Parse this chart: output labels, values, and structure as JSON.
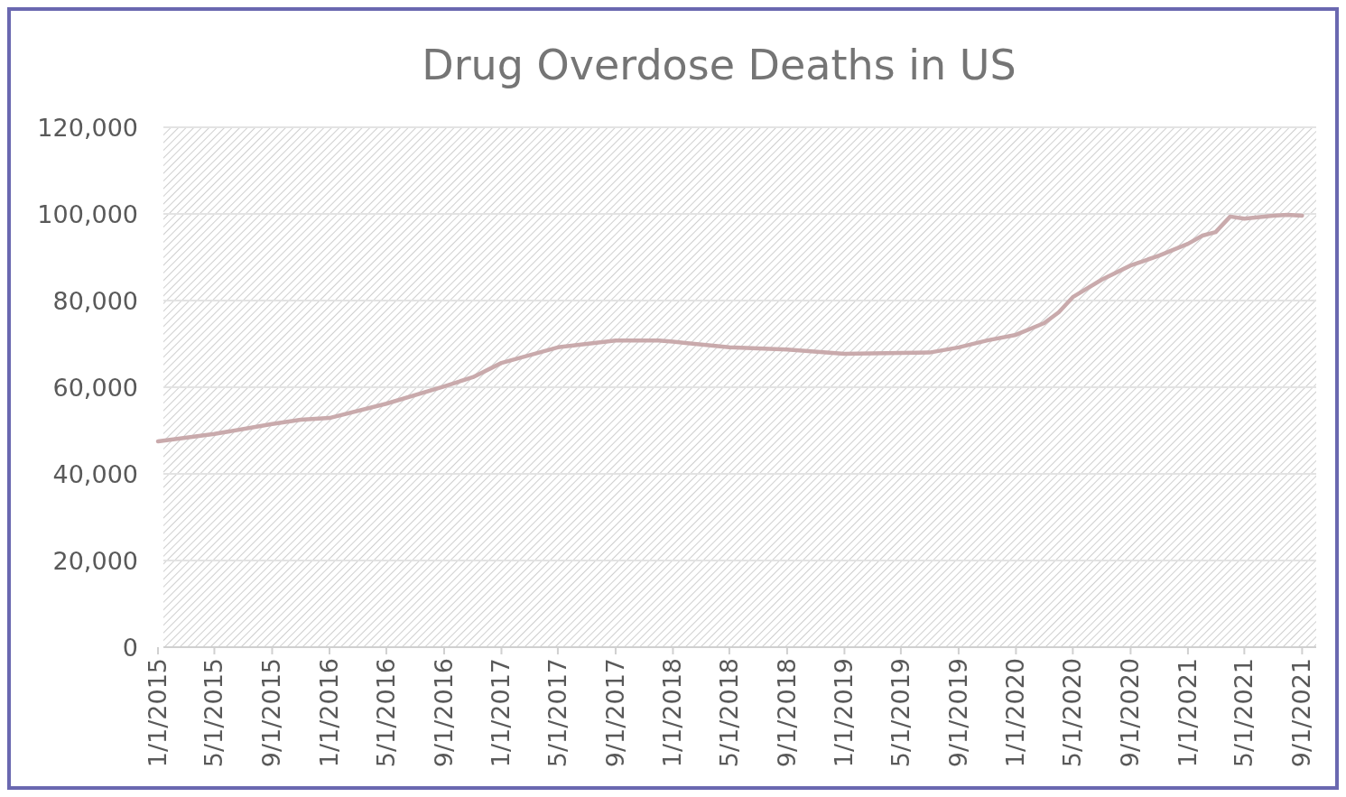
{
  "chart_data": {
    "type": "line",
    "title": "Drug Overdose Deaths in US",
    "x": [
      "2015-01-01",
      "2015-05-01",
      "2015-09-01",
      "2015-11-01",
      "2016-01-01",
      "2016-05-01",
      "2016-09-01",
      "2016-11-01",
      "2017-01-01",
      "2017-05-01",
      "2017-09-01",
      "2017-12-01",
      "2018-01-01",
      "2018-05-01",
      "2018-09-01",
      "2019-01-01",
      "2019-05-01",
      "2019-07-01",
      "2019-09-01",
      "2019-11-01",
      "2020-01-01",
      "2020-03-01",
      "2020-04-01",
      "2020-05-01",
      "2020-07-01",
      "2020-09-01",
      "2020-11-01",
      "2021-01-01",
      "2021-02-01",
      "2021-03-01",
      "2021-04-01",
      "2021-05-01",
      "2021-07-01",
      "2021-08-01",
      "2021-09-01"
    ],
    "series": [
      {
        "color": "#c9aaac",
        "values": [
          47500,
          49200,
          51500,
          52500,
          52900,
          56200,
          60200,
          62300,
          65600,
          69200,
          70800,
          70800,
          70500,
          69200,
          68700,
          67700,
          67900,
          68000,
          69200,
          70800,
          72100,
          74800,
          77300,
          80800,
          84800,
          88100,
          90400,
          93100,
          95000,
          95800,
          99400,
          98900,
          99600,
          99800,
          99600
        ]
      }
    ],
    "xlim": [
      "2015-01-01",
      "2021-10-01"
    ],
    "xticks": [
      {
        "value": "2015-01-01",
        "label": "1/1/2015"
      },
      {
        "value": "2015-05-01",
        "label": "5/1/2015"
      },
      {
        "value": "2015-09-01",
        "label": "9/1/2015"
      },
      {
        "value": "2016-01-01",
        "label": "1/1/2016"
      },
      {
        "value": "2016-05-01",
        "label": "5/1/2016"
      },
      {
        "value": "2016-09-01",
        "label": "9/1/2016"
      },
      {
        "value": "2017-01-01",
        "label": "1/1/2017"
      },
      {
        "value": "2017-05-01",
        "label": "5/1/2017"
      },
      {
        "value": "2017-09-01",
        "label": "9/1/2017"
      },
      {
        "value": "2018-01-01",
        "label": "1/1/2018"
      },
      {
        "value": "2018-05-01",
        "label": "5/1/2018"
      },
      {
        "value": "2018-09-01",
        "label": "9/1/2018"
      },
      {
        "value": "2019-01-01",
        "label": "1/1/2019"
      },
      {
        "value": "2019-05-01",
        "label": "5/1/2019"
      },
      {
        "value": "2019-09-01",
        "label": "9/1/2019"
      },
      {
        "value": "2020-01-01",
        "label": "1/1/2020"
      },
      {
        "value": "2020-05-01",
        "label": "5/1/2020"
      },
      {
        "value": "2020-09-01",
        "label": "9/1/2020"
      },
      {
        "value": "2021-01-01",
        "label": "1/1/2021"
      },
      {
        "value": "2021-05-01",
        "label": "5/1/2021"
      },
      {
        "value": "2021-09-01",
        "label": "9/1/2021"
      }
    ],
    "ylim": [
      0,
      120000
    ],
    "yticks": [
      {
        "value": 0,
        "label": "0"
      },
      {
        "value": 20000,
        "label": "20,000"
      },
      {
        "value": 40000,
        "label": "40,000"
      },
      {
        "value": 60000,
        "label": "60,000"
      },
      {
        "value": 80000,
        "label": "80,000"
      },
      {
        "value": 100000,
        "label": "100,000"
      },
      {
        "value": 120000,
        "label": "120,000"
      }
    ],
    "grid": "y",
    "line_style": "solid",
    "marker": "none"
  }
}
